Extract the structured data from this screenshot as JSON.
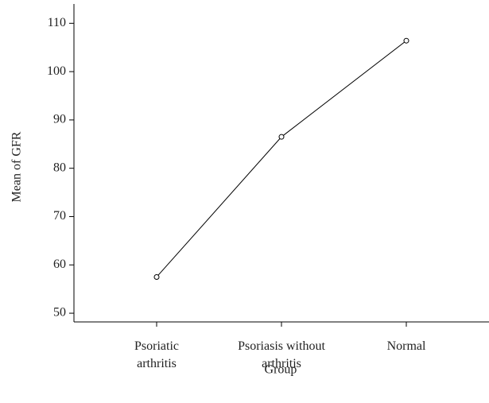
{
  "chart_data": {
    "type": "line",
    "x_label": "Group",
    "y_label": "Mean of GFR",
    "categories": [
      "Psoriatic\narthritis",
      "Psoriasis without\narthritis",
      "Normal"
    ],
    "series": [
      {
        "name": "Mean of GFR",
        "color": "#000000",
        "values": [
          57.5,
          86.5,
          106.4
        ]
      }
    ],
    "ylim": [
      48.2,
      114
    ],
    "yticks": [
      50,
      60,
      70,
      80,
      90,
      100,
      110
    ]
  }
}
